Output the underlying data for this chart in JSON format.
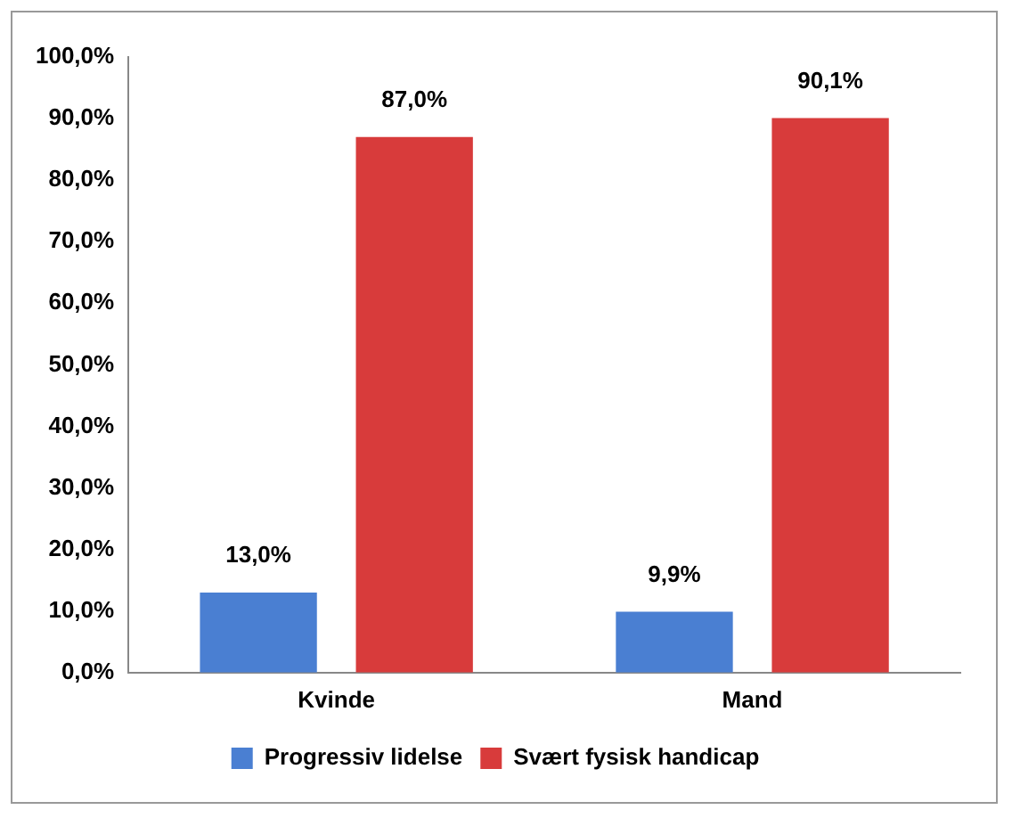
{
  "chart_data": {
    "type": "bar",
    "categories": [
      "Kvinde",
      "Mand"
    ],
    "series": [
      {
        "name": "Progressiv lidelse",
        "color": "#4a7fd2",
        "values": [
          13.0,
          9.9
        ],
        "value_labels": [
          "13,0%",
          "9,9%"
        ]
      },
      {
        "name": "Svært fysisk handicap",
        "color": "#d83b3b",
        "values": [
          87.0,
          90.1
        ],
        "value_labels": [
          "87,0%",
          "90,1%"
        ]
      }
    ],
    "ylim": [
      0,
      100
    ],
    "yticks": [
      {
        "value": 0,
        "label": "0,0%"
      },
      {
        "value": 10,
        "label": "10,0%"
      },
      {
        "value": 20,
        "label": "20,0%"
      },
      {
        "value": 30,
        "label": "30,0%"
      },
      {
        "value": 40,
        "label": "40,0%"
      },
      {
        "value": 50,
        "label": "50,0%"
      },
      {
        "value": 60,
        "label": "60,0%"
      },
      {
        "value": 70,
        "label": "70,0%"
      },
      {
        "value": 80,
        "label": "80,0%"
      },
      {
        "value": 90,
        "label": "90,0%"
      },
      {
        "value": 100,
        "label": "100,0%"
      }
    ],
    "grid": false,
    "legend": "bottom"
  }
}
